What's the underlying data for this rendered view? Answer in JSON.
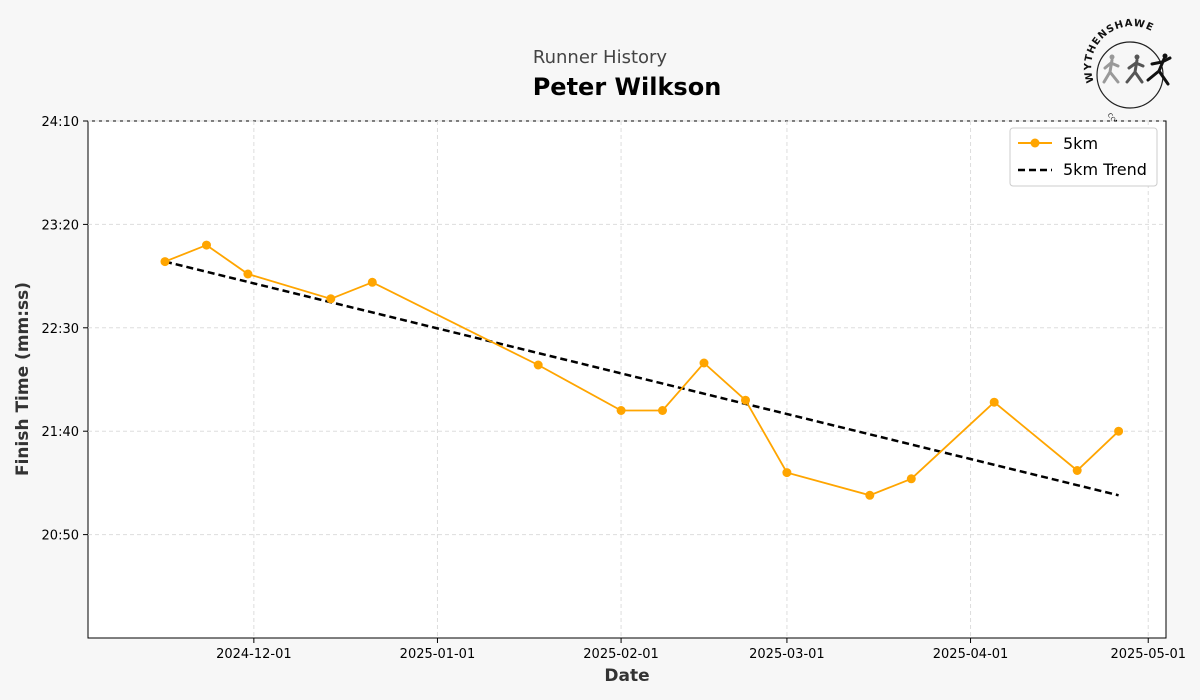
{
  "header": {
    "subtitle": "Runner History",
    "title": "Peter Wilkson"
  },
  "logo": {
    "name": "WYTHENSHAWE",
    "tagline": "COMMUNITY RUN"
  },
  "colors": {
    "series": "#ffa500",
    "trend": "#000000",
    "grid": "#dddddd"
  },
  "chart_data": {
    "type": "line",
    "xlabel": "Date",
    "ylabel": "Finish Time (mm:ss)",
    "xlim": [
      "2024-11-03",
      "2025-05-04"
    ],
    "ylim": [
      "20:00",
      "24:10"
    ],
    "x_ticks": [
      "2024-12-01",
      "2025-01-01",
      "2025-02-01",
      "2025-03-01",
      "2025-04-01",
      "2025-05-01"
    ],
    "y_ticks": [
      "20:50",
      "21:40",
      "22:30",
      "23:20",
      "24:10"
    ],
    "grid": true,
    "legend_position": "top-right",
    "series": [
      {
        "name": "5km",
        "style": "line-with-markers",
        "points": [
          {
            "x": "2024-11-16",
            "y": "23:02"
          },
          {
            "x": "2024-11-23",
            "y": "23:10"
          },
          {
            "x": "2024-11-30",
            "y": "22:56"
          },
          {
            "x": "2024-12-14",
            "y": "22:44"
          },
          {
            "x": "2024-12-21",
            "y": "22:52"
          },
          {
            "x": "2025-01-18",
            "y": "22:12"
          },
          {
            "x": "2025-02-01",
            "y": "21:50"
          },
          {
            "x": "2025-02-08",
            "y": "21:50"
          },
          {
            "x": "2025-02-15",
            "y": "22:13"
          },
          {
            "x": "2025-02-22",
            "y": "21:55"
          },
          {
            "x": "2025-03-01",
            "y": "21:20"
          },
          {
            "x": "2025-03-15",
            "y": "21:09"
          },
          {
            "x": "2025-03-22",
            "y": "21:17"
          },
          {
            "x": "2025-04-05",
            "y": "21:54"
          },
          {
            "x": "2025-04-19",
            "y": "21:21"
          },
          {
            "x": "2025-04-26",
            "y": "21:40"
          }
        ]
      },
      {
        "name": "5km Trend",
        "style": "dashed",
        "points": [
          {
            "x": "2024-11-16",
            "y": "23:02"
          },
          {
            "x": "2025-04-26",
            "y": "21:09"
          }
        ]
      }
    ]
  }
}
